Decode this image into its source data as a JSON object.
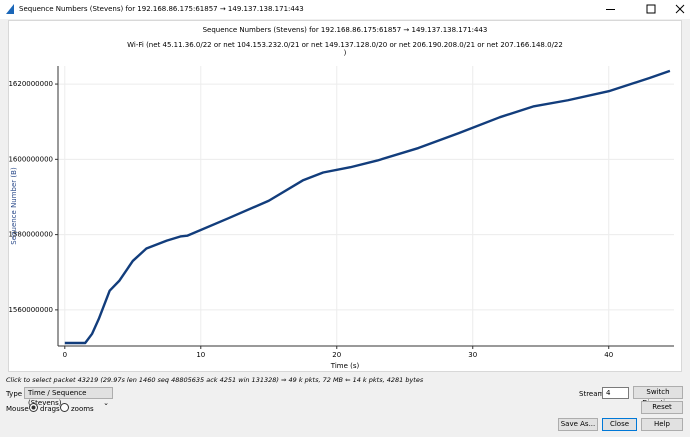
{
  "window": {
    "title": "Sequence Numbers (Stevens) for 192.168.86.175:61857 → 149.137.138.171:443"
  },
  "chart_data": {
    "type": "line",
    "title": "Sequence Numbers (Stevens) for 192.168.86.175:61857 → 149.137.138.171:443",
    "subtitle": [
      "Wi-Fi (net 45.11.36.0/22 or net 104.153.232.0/21 or net 149.137.128.0/20 or net 206.190.208.0/21 or net 207.166.148.0/22",
      ")"
    ],
    "x_label": "Time (s)",
    "y_label": "Sequence Number (B)",
    "x": [
      0,
      1.5,
      2.0,
      2.5,
      3.3,
      4,
      5,
      6,
      7.5,
      8.5,
      9,
      12,
      15,
      17.5,
      19,
      21,
      23,
      26,
      29,
      32,
      34.5,
      37,
      40,
      43,
      44.5
    ],
    "series": [
      {
        "name": "Sequence Number",
        "color": "#123d7c",
        "values": [
          1551200000,
          1551200000,
          1553600000,
          1557600000,
          1565100000,
          1567700000,
          1573000000,
          1576300000,
          1578400000,
          1579500000,
          1579700000,
          1584300000,
          1589000000,
          1594400000,
          1596500000,
          1597900000,
          1599700000,
          1603000000,
          1607000000,
          1611200000,
          1614100000,
          1615700000,
          1618100000,
          1621600000,
          1623500000
        ]
      }
    ],
    "xlim": [
      -0.5,
      44.8
    ],
    "xticks": [
      0,
      10,
      20,
      30,
      40
    ],
    "ylim": [
      1550400000,
      1624800000
    ],
    "yticks": [
      1560000000,
      1580000000,
      1600000000,
      1620000000
    ],
    "grid": true
  },
  "status": "Click to select packet 43219 (29.97s len 1460 seq 48805635 ack 4251 win 131328) ⇒ 49 k pkts, 72 MB ⇐ 14 k pkts, 4281 bytes",
  "controls": {
    "type_label": "Type",
    "type_value": "Time / Sequence (Stevens)",
    "stream_label": "Stream",
    "stream_value": "4",
    "switch_direction": "Switch Direction",
    "mouse_label": "Mouse",
    "drags": "drags",
    "zooms": "zooms",
    "reset": "Reset",
    "save_as": "Save As...",
    "close": "Close",
    "help": "Help"
  }
}
